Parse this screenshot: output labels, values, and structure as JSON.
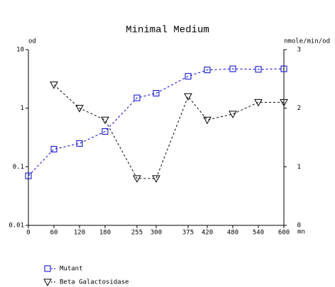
{
  "chart_data": {
    "type": "line",
    "title": "Minimal Medium",
    "y_label": "od",
    "y2_label": "nmole/min/od",
    "x_label": "mn",
    "x": [
      0,
      60,
      120,
      180,
      255,
      300,
      375,
      420,
      480,
      540,
      600
    ],
    "series": [
      {
        "name": "Mutant",
        "color": "#0000cc",
        "marker": "square",
        "values": [
          0.07,
          0.2,
          0.25,
          0.4,
          1.5,
          1.8,
          3.5,
          4.5,
          4.7,
          4.6,
          4.7
        ]
      },
      {
        "name": "Beta Galactosidase",
        "color": "#000000",
        "marker": "triangle-down",
        "axis": "y2",
        "values": [
          null,
          2.4,
          2.0,
          1.8,
          0.8,
          0.8,
          2.2,
          1.8,
          1.9,
          2.1,
          2.1
        ]
      }
    ],
    "xlim": [
      0,
      600
    ],
    "xticks": [
      0,
      60,
      120,
      180,
      255,
      300,
      375,
      420,
      480,
      540,
      600
    ],
    "ylim": [
      0.01,
      10
    ],
    "yticks": [
      0.01,
      0.1,
      1,
      10
    ],
    "ylog": true,
    "y2lim": [
      0,
      3
    ],
    "y2ticks": [
      0,
      1,
      2,
      3
    ]
  }
}
